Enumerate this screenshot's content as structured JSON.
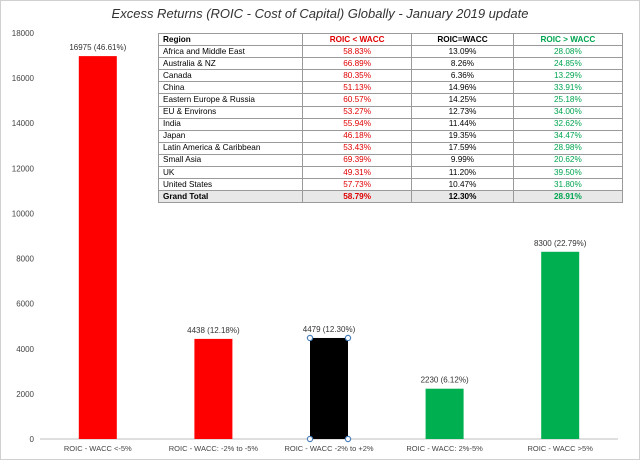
{
  "chart_data": {
    "type": "bar",
    "title": "Excess Returns (ROIC - Cost of Capital) Globally - January 2019 update",
    "categories": [
      "ROIC - WACC <-5%",
      "ROIC - WACC: -2% to -5%",
      "ROIC - WACC -2% to +2%",
      "ROIC - WACC: 2%-5%",
      "ROIC - WACC >5%"
    ],
    "values": [
      16975,
      4438,
      4479,
      2230,
      8300
    ],
    "data_labels": [
      "16975 (46.61%)",
      "4438 (12.18%)",
      "4479 (12.30%)",
      "2230 (6.12%)",
      "8300 (22.79%)"
    ],
    "colors": [
      "#ff0000",
      "#ff0000",
      "#000000",
      "#00b050",
      "#00b050"
    ],
    "ylim": [
      0,
      18000
    ],
    "yticks": [
      0,
      2000,
      4000,
      6000,
      8000,
      10000,
      12000,
      14000,
      16000,
      18000
    ],
    "xlabel": "",
    "ylabel": "",
    "grid": false,
    "selected_index": 2
  },
  "table": {
    "headers": [
      "Region",
      "ROIC < WACC",
      "ROIC=WACC",
      "ROIC > WACC"
    ],
    "rows": [
      [
        "Africa and Middle East",
        "58.83%",
        "13.09%",
        "28.08%"
      ],
      [
        "Australia & NZ",
        "66.89%",
        "8.26%",
        "24.85%"
      ],
      [
        "Canada",
        "80.35%",
        "6.36%",
        "13.29%"
      ],
      [
        "China",
        "51.13%",
        "14.96%",
        "33.91%"
      ],
      [
        "Eastern Europe & Russia",
        "60.57%",
        "14.25%",
        "25.18%"
      ],
      [
        "EU & Environs",
        "53.27%",
        "12.73%",
        "34.00%"
      ],
      [
        "India",
        "55.94%",
        "11.44%",
        "32.62%"
      ],
      [
        "Japan",
        "46.18%",
        "19.35%",
        "34.47%"
      ],
      [
        "Latin America & Caribbean",
        "53.43%",
        "17.59%",
        "28.98%"
      ],
      [
        "Small Asia",
        "69.39%",
        "9.99%",
        "20.62%"
      ],
      [
        "UK",
        "49.31%",
        "11.20%",
        "39.50%"
      ],
      [
        "United States",
        "57.73%",
        "10.47%",
        "31.80%"
      ],
      [
        "Grand Total",
        "58.79%",
        "12.30%",
        "28.91%"
      ]
    ]
  }
}
